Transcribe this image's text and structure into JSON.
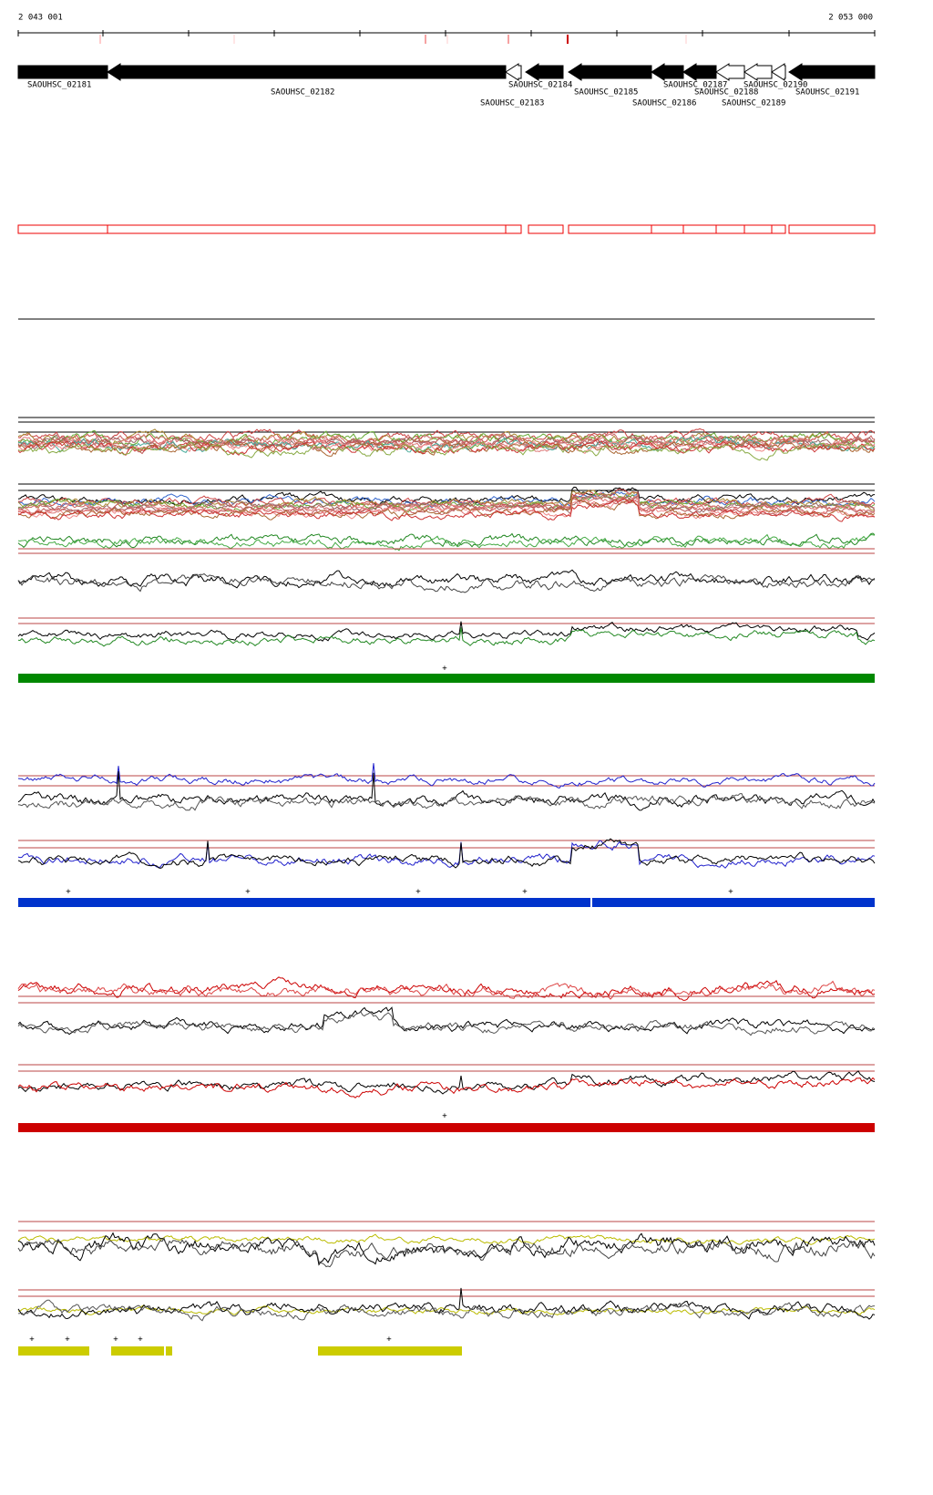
{
  "header": {
    "start": "2 043 001",
    "end": "2 053 000"
  },
  "genes": [
    {
      "label": "SAOUHSC_02181"
    },
    {
      "label": "SAOUHSC_02182"
    },
    {
      "label": "SAOUHSC_02183"
    },
    {
      "label": "SAOUHSC_02184"
    },
    {
      "label": "SAOUHSC_02185"
    },
    {
      "label": "SAOUHSC_02186"
    },
    {
      "label": "SAOUHSC_02187"
    },
    {
      "label": "SAOUHSC_02188"
    },
    {
      "label": "SAOUHSC_02189"
    },
    {
      "label": "SAOUHSC_02190"
    },
    {
      "label": "SAOUHSC_02191"
    }
  ],
  "markers": {
    "green": [
      "+"
    ],
    "blue": [
      "+",
      "+",
      "+",
      "+",
      "+"
    ],
    "red": [
      "+"
    ],
    "yellow": [
      "+",
      "+",
      "+",
      "+",
      "+"
    ]
  }
}
